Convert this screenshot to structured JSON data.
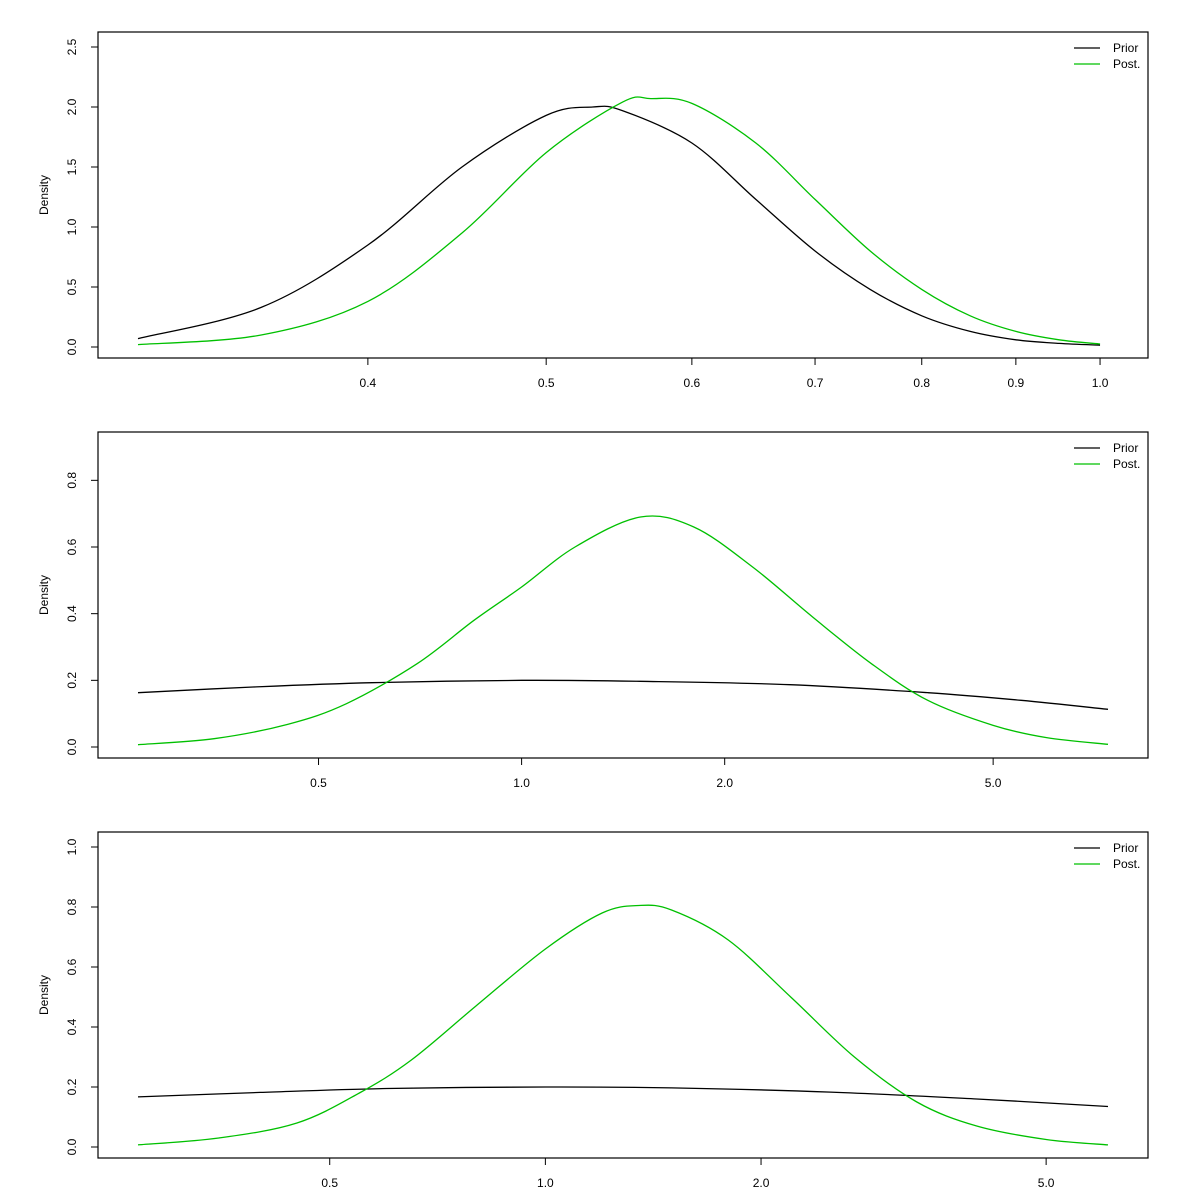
{
  "colors": {
    "prior": "#000000",
    "posterior": "#00c000",
    "frame": "#000000",
    "background": "#ffffff"
  },
  "chart_data": [
    {
      "type": "line",
      "xscale": "log",
      "xlim": [
        0.3,
        1.01
      ],
      "ylim": [
        0,
        2.5
      ],
      "xticks": [
        {
          "v": 0.4,
          "label": "0.4"
        },
        {
          "v": 0.5,
          "label": "0.5"
        },
        {
          "v": 0.6,
          "label": "0.6"
        },
        {
          "v": 0.7,
          "label": "0.7"
        },
        {
          "v": 0.8,
          "label": "0.8"
        },
        {
          "v": 0.9,
          "label": "0.9"
        },
        {
          "v": 1.0,
          "label": "1.0"
        }
      ],
      "yticks": [
        {
          "v": 0.0,
          "label": "0.0"
        },
        {
          "v": 0.5,
          "label": "0.5"
        },
        {
          "v": 1.0,
          "label": "1.0"
        },
        {
          "v": 1.5,
          "label": "1.5"
        },
        {
          "v": 2.0,
          "label": "2.0"
        },
        {
          "v": 2.5,
          "label": "2.5"
        }
      ],
      "xlabel": "",
      "ylabel": "Density",
      "legend": {
        "position": "top-right",
        "entries": [
          "Prior",
          "Post."
        ]
      },
      "series": [
        {
          "name": "Prior",
          "color": "#000000",
          "x": [
            0.3,
            0.35,
            0.4,
            0.45,
            0.5,
            0.53,
            0.55,
            0.6,
            0.65,
            0.7,
            0.75,
            0.8,
            0.85,
            0.9,
            0.95,
            1.0
          ],
          "y": [
            0.07,
            0.33,
            0.85,
            1.5,
            1.93,
            2.0,
            1.97,
            1.7,
            1.23,
            0.8,
            0.48,
            0.26,
            0.13,
            0.06,
            0.03,
            0.015
          ]
        },
        {
          "name": "Post.",
          "color": "#00c000",
          "x": [
            0.3,
            0.35,
            0.4,
            0.45,
            0.5,
            0.55,
            0.57,
            0.6,
            0.65,
            0.7,
            0.75,
            0.8,
            0.85,
            0.9,
            0.95,
            1.0
          ],
          "y": [
            0.02,
            0.1,
            0.38,
            0.95,
            1.62,
            2.04,
            2.07,
            2.03,
            1.7,
            1.23,
            0.8,
            0.48,
            0.26,
            0.13,
            0.06,
            0.025
          ]
        }
      ]
    },
    {
      "type": "line",
      "xscale": "log",
      "xlim": [
        0.27,
        7.4
      ],
      "ylim": [
        0,
        0.9
      ],
      "xticks": [
        {
          "v": 0.5,
          "label": "0.5"
        },
        {
          "v": 1.0,
          "label": "1.0"
        },
        {
          "v": 2.0,
          "label": "2.0"
        },
        {
          "v": 5.0,
          "label": "5.0"
        }
      ],
      "yticks": [
        {
          "v": 0.0,
          "label": "0.0"
        },
        {
          "v": 0.2,
          "label": "0.2"
        },
        {
          "v": 0.4,
          "label": "0.4"
        },
        {
          "v": 0.6,
          "label": "0.6"
        },
        {
          "v": 0.8,
          "label": "0.8"
        }
      ],
      "xlabel": "",
      "ylabel": "Density",
      "legend": {
        "position": "top-right",
        "entries": [
          "Prior",
          "Post."
        ]
      },
      "series": [
        {
          "name": "Prior",
          "color": "#000000",
          "x": [
            0.27,
            0.4,
            0.6,
            1.0,
            1.5,
            2.5,
            4.0,
            5.5,
            7.4
          ],
          "y": [
            0.163,
            0.18,
            0.193,
            0.2,
            0.197,
            0.187,
            0.163,
            0.14,
            0.113
          ]
        },
        {
          "name": "Post.",
          "color": "#00c000",
          "x": [
            0.27,
            0.35,
            0.45,
            0.55,
            0.7,
            0.85,
            1.0,
            1.2,
            1.5,
            1.8,
            2.2,
            2.7,
            3.3,
            4.0,
            5.0,
            6.0,
            7.4
          ],
          "y": [
            0.007,
            0.025,
            0.068,
            0.13,
            0.25,
            0.38,
            0.48,
            0.6,
            0.69,
            0.66,
            0.54,
            0.39,
            0.25,
            0.14,
            0.065,
            0.028,
            0.008
          ]
        }
      ]
    },
    {
      "type": "line",
      "xscale": "log",
      "xlim": [
        0.27,
        6.1
      ],
      "ylim": [
        0,
        1.0
      ],
      "xticks": [
        {
          "v": 0.5,
          "label": "0.5"
        },
        {
          "v": 1.0,
          "label": "1.0"
        },
        {
          "v": 2.0,
          "label": "2.0"
        },
        {
          "v": 5.0,
          "label": "5.0"
        }
      ],
      "yticks": [
        {
          "v": 0.0,
          "label": "0.0"
        },
        {
          "v": 0.2,
          "label": "0.2"
        },
        {
          "v": 0.4,
          "label": "0.4"
        },
        {
          "v": 0.6,
          "label": "0.6"
        },
        {
          "v": 0.8,
          "label": "0.8"
        },
        {
          "v": 1.0,
          "label": "1.0"
        }
      ],
      "xlabel": "",
      "ylabel": "Density",
      "legend": {
        "position": "top-right",
        "entries": [
          "Prior",
          "Post."
        ]
      },
      "series": [
        {
          "name": "Prior",
          "color": "#000000",
          "x": [
            0.27,
            0.4,
            0.6,
            1.0,
            1.5,
            2.5,
            4.0,
            6.1
          ],
          "y": [
            0.167,
            0.182,
            0.195,
            0.2,
            0.197,
            0.183,
            0.16,
            0.135
          ]
        },
        {
          "name": "Post.",
          "color": "#00c000",
          "x": [
            0.27,
            0.35,
            0.45,
            0.55,
            0.65,
            0.8,
            1.0,
            1.2,
            1.35,
            1.5,
            1.8,
            2.2,
            2.7,
            3.3,
            4.0,
            5.0,
            6.1
          ],
          "y": [
            0.007,
            0.03,
            0.08,
            0.18,
            0.29,
            0.47,
            0.66,
            0.78,
            0.805,
            0.79,
            0.69,
            0.5,
            0.3,
            0.15,
            0.07,
            0.025,
            0.007
          ]
        }
      ]
    }
  ]
}
